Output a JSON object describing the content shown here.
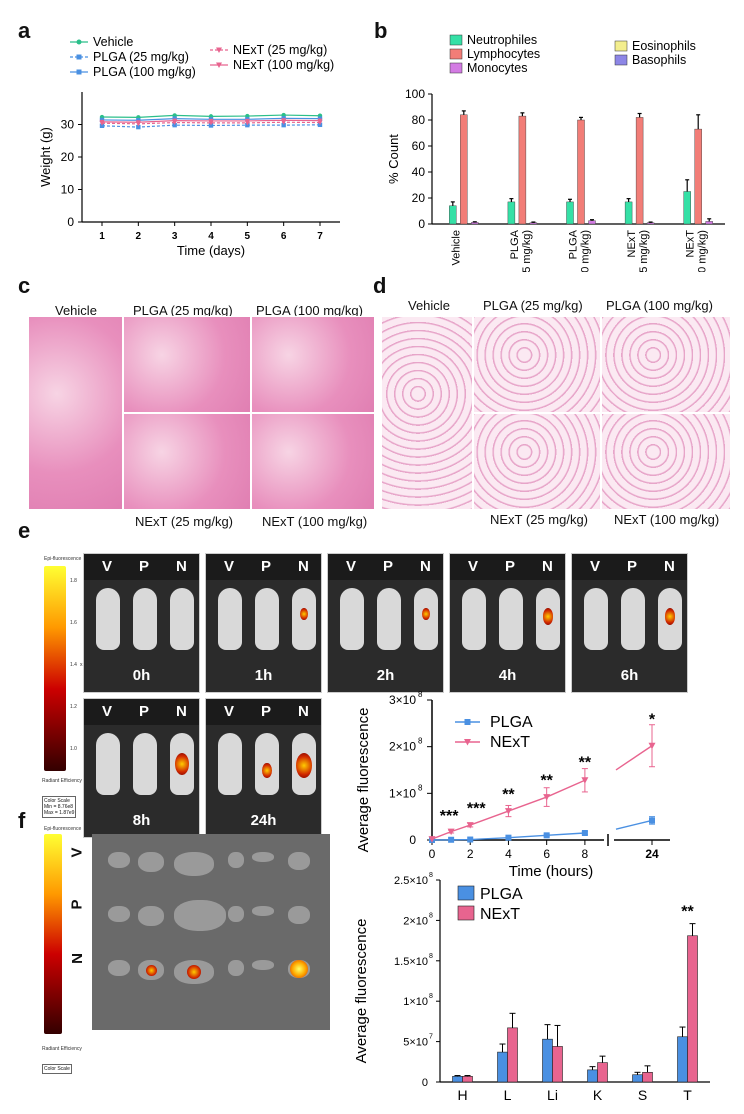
{
  "panel_letters": {
    "a": "a",
    "b": "b",
    "c": "c",
    "d": "d",
    "e": "e",
    "f": "f"
  },
  "colors": {
    "vehicle": "#2bbf8a",
    "plga": "#4a90e2",
    "next": "#e8648f",
    "neutro": "#35e0a6",
    "lympho": "#f27d77",
    "mono": "#d37be3",
    "eos": "#f3ee8e",
    "baso": "#8d86e6"
  },
  "panel_a": {
    "legend": {
      "vehicle": "Vehicle",
      "plga25": "PLGA (25 mg/kg)",
      "plga100": "PLGA (100 mg/kg)",
      "next25": "NExT (25 mg/kg)",
      "next100": "NExT (100 mg/kg)"
    },
    "xlabel": "Time (days)",
    "ylabel": "Weight (g)",
    "xticks": [
      "1",
      "2",
      "3",
      "4",
      "5",
      "6",
      "7"
    ],
    "yticks": [
      "0",
      "10",
      "20",
      "30"
    ]
  },
  "panel_b": {
    "legend": {
      "neutro": "Neutrophiles",
      "lympho": "Lymphocytes",
      "mono": "Monocytes",
      "eos": "Eosinophils",
      "baso": "Basophils"
    },
    "ylabel": "% Count",
    "yticks": [
      "0",
      "20",
      "40",
      "60",
      "80",
      "100"
    ],
    "categories": [
      [
        "Vehicle"
      ],
      [
        "PLGA",
        "(25 mg/kg)"
      ],
      [
        "PLGA",
        "(100 mg/kg)"
      ],
      [
        "NExT",
        "(25 mg/kg)"
      ],
      [
        "NExT",
        "(100 mg/kg)"
      ]
    ]
  },
  "panel_c": {
    "labels": {
      "vehicle": "Vehicle",
      "plga25": "PLGA (25 mg/kg)",
      "plga100": "PLGA (100 mg/kg)",
      "next25": "NExT (25 mg/kg)",
      "next100": "NExT (100 mg/kg)"
    }
  },
  "panel_d": {
    "labels": {
      "vehicle": "Vehicle",
      "plga25": "PLGA (25 mg/kg)",
      "plga100": "PLGA (100 mg/kg)",
      "next25": "NExT (25 mg/kg)",
      "next100": "NExT (100 mg/kg)"
    }
  },
  "panel_e": {
    "mouse_labels": {
      "v": "V",
      "p": "P",
      "n": "N"
    },
    "timepoints": [
      "0h",
      "1h",
      "2h",
      "4h",
      "6h",
      "8h",
      "24h"
    ],
    "scale": {
      "title": "Epi-fluorescence",
      "exponent": "x10",
      "ticks": [
        "1.8",
        "1.6",
        "1.4",
        "1.2",
        "1.0"
      ],
      "unit": "Radiant Efficiency",
      "color_scale": "Color Scale",
      "min": "Min = 8.76e8",
      "max": "Max = 1.87e9"
    },
    "legend": {
      "plga": "PLGA",
      "next": "NExT"
    },
    "xlabel": "Time (hours)",
    "ylabel": "Average fluorescence",
    "xticks": [
      "0",
      "2",
      "4",
      "6",
      "8",
      "24"
    ],
    "yticks": [
      "0",
      "1×10",
      "2×10",
      "3×10"
    ],
    "yexp": "8",
    "stars": [
      "***",
      "***",
      "**",
      "**",
      "**",
      "*"
    ]
  },
  "panel_f": {
    "row_labels": {
      "v": "V",
      "p": "P",
      "n": "N"
    },
    "scale": {
      "title": "Epi-fluorescence",
      "unit": "Radiant Efficiency",
      "color_scale": "Color Scale"
    },
    "legend": {
      "plga": "PLGA",
      "next": "NExT"
    },
    "ylabel": "Average fluorescence",
    "categories": [
      "H",
      "L",
      "Li",
      "K",
      "S",
      "T"
    ],
    "yticks": [
      "0",
      "5×10",
      "1×10",
      "1.5×10",
      "2×10",
      "2.5×10"
    ],
    "yexps": [
      "",
      "7",
      "8",
      "8",
      "8",
      "8"
    ],
    "stars": "**"
  },
  "chart_data": [
    {
      "type": "line",
      "title": "",
      "xlabel": "Time (days)",
      "ylabel": "Weight (g)",
      "x": [
        1,
        2,
        3,
        4,
        5,
        6,
        7
      ],
      "ylim": [
        0,
        40
      ],
      "series": [
        {
          "name": "Vehicle",
          "values": [
            32.3,
            32.2,
            32.8,
            32.5,
            32.6,
            32.9,
            32.7
          ]
        },
        {
          "name": "PLGA (25 mg/kg)",
          "values": [
            29.6,
            29.2,
            29.8,
            29.7,
            29.8,
            29.8,
            29.9
          ]
        },
        {
          "name": "PLGA (100 mg/kg)",
          "values": [
            31.4,
            31.3,
            31.8,
            31.6,
            31.6,
            31.9,
            31.8
          ]
        },
        {
          "name": "NExT (25 mg/kg)",
          "values": [
            30.4,
            30.2,
            30.6,
            30.5,
            30.5,
            30.7,
            30.6
          ]
        },
        {
          "name": "NExT (100 mg/kg)",
          "values": [
            30.8,
            30.7,
            31.2,
            31.1,
            31.1,
            31.3,
            31.2
          ]
        }
      ]
    },
    {
      "type": "bar",
      "title": "",
      "ylabel": "% Count",
      "ylim": [
        0,
        100
      ],
      "categories": [
        "Vehicle",
        "PLGA (25 mg/kg)",
        "PLGA (100 mg/kg)",
        "NExT (25 mg/kg)",
        "NExT (100 mg/kg)"
      ],
      "series": [
        {
          "name": "Neutrophiles",
          "values": [
            14,
            17,
            17,
            17,
            25
          ],
          "errors": [
            3,
            2.5,
            2,
            2.5,
            9
          ]
        },
        {
          "name": "Lymphocytes",
          "values": [
            84,
            83,
            80,
            82,
            73
          ],
          "errors": [
            3,
            2.5,
            2,
            3,
            11
          ]
        },
        {
          "name": "Monocytes",
          "values": [
            1.2,
            1,
            2.5,
            1,
            2
          ],
          "errors": [
            0.5,
            0.5,
            0.8,
            0.5,
            2
          ]
        },
        {
          "name": "Eosinophils",
          "values": [
            0,
            0,
            0,
            0,
            0
          ]
        },
        {
          "name": "Basophils",
          "values": [
            0,
            0,
            0,
            0,
            0
          ]
        }
      ]
    },
    {
      "type": "line",
      "title": "",
      "xlabel": "Time (hours)",
      "ylabel": "Average fluorescence",
      "x": [
        0,
        1,
        2,
        4,
        6,
        8,
        24
      ],
      "ylim": [
        0,
        300000000
      ],
      "series": [
        {
          "name": "PLGA",
          "values": [
            0,
            500000,
            1000000,
            5000000,
            10000000,
            15000000,
            42000000
          ],
          "errors": [
            0,
            0,
            0,
            1000000,
            2000000,
            3000000,
            8000000
          ]
        },
        {
          "name": "NExT",
          "values": [
            2000000,
            18000000,
            32000000,
            62000000,
            92000000,
            128000000,
            202000000
          ],
          "errors": [
            0,
            3000000,
            4000000,
            12000000,
            20000000,
            25000000,
            45000000
          ]
        }
      ]
    },
    {
      "type": "bar",
      "title": "",
      "ylabel": "Average fluorescence",
      "ylim": [
        0,
        250000000
      ],
      "categories": [
        "H",
        "L",
        "Li",
        "K",
        "S",
        "T"
      ],
      "series": [
        {
          "name": "PLGA",
          "values": [
            7000000,
            37000000,
            53000000,
            15000000,
            9000000,
            56000000
          ],
          "errors": [
            1000000,
            10000000,
            18000000,
            4000000,
            3000000,
            12000000
          ]
        },
        {
          "name": "NExT",
          "values": [
            7000000,
            67000000,
            44000000,
            24000000,
            12000000,
            181000000
          ],
          "errors": [
            1000000,
            18000000,
            26000000,
            8000000,
            8000000,
            15000000
          ]
        }
      ]
    }
  ]
}
